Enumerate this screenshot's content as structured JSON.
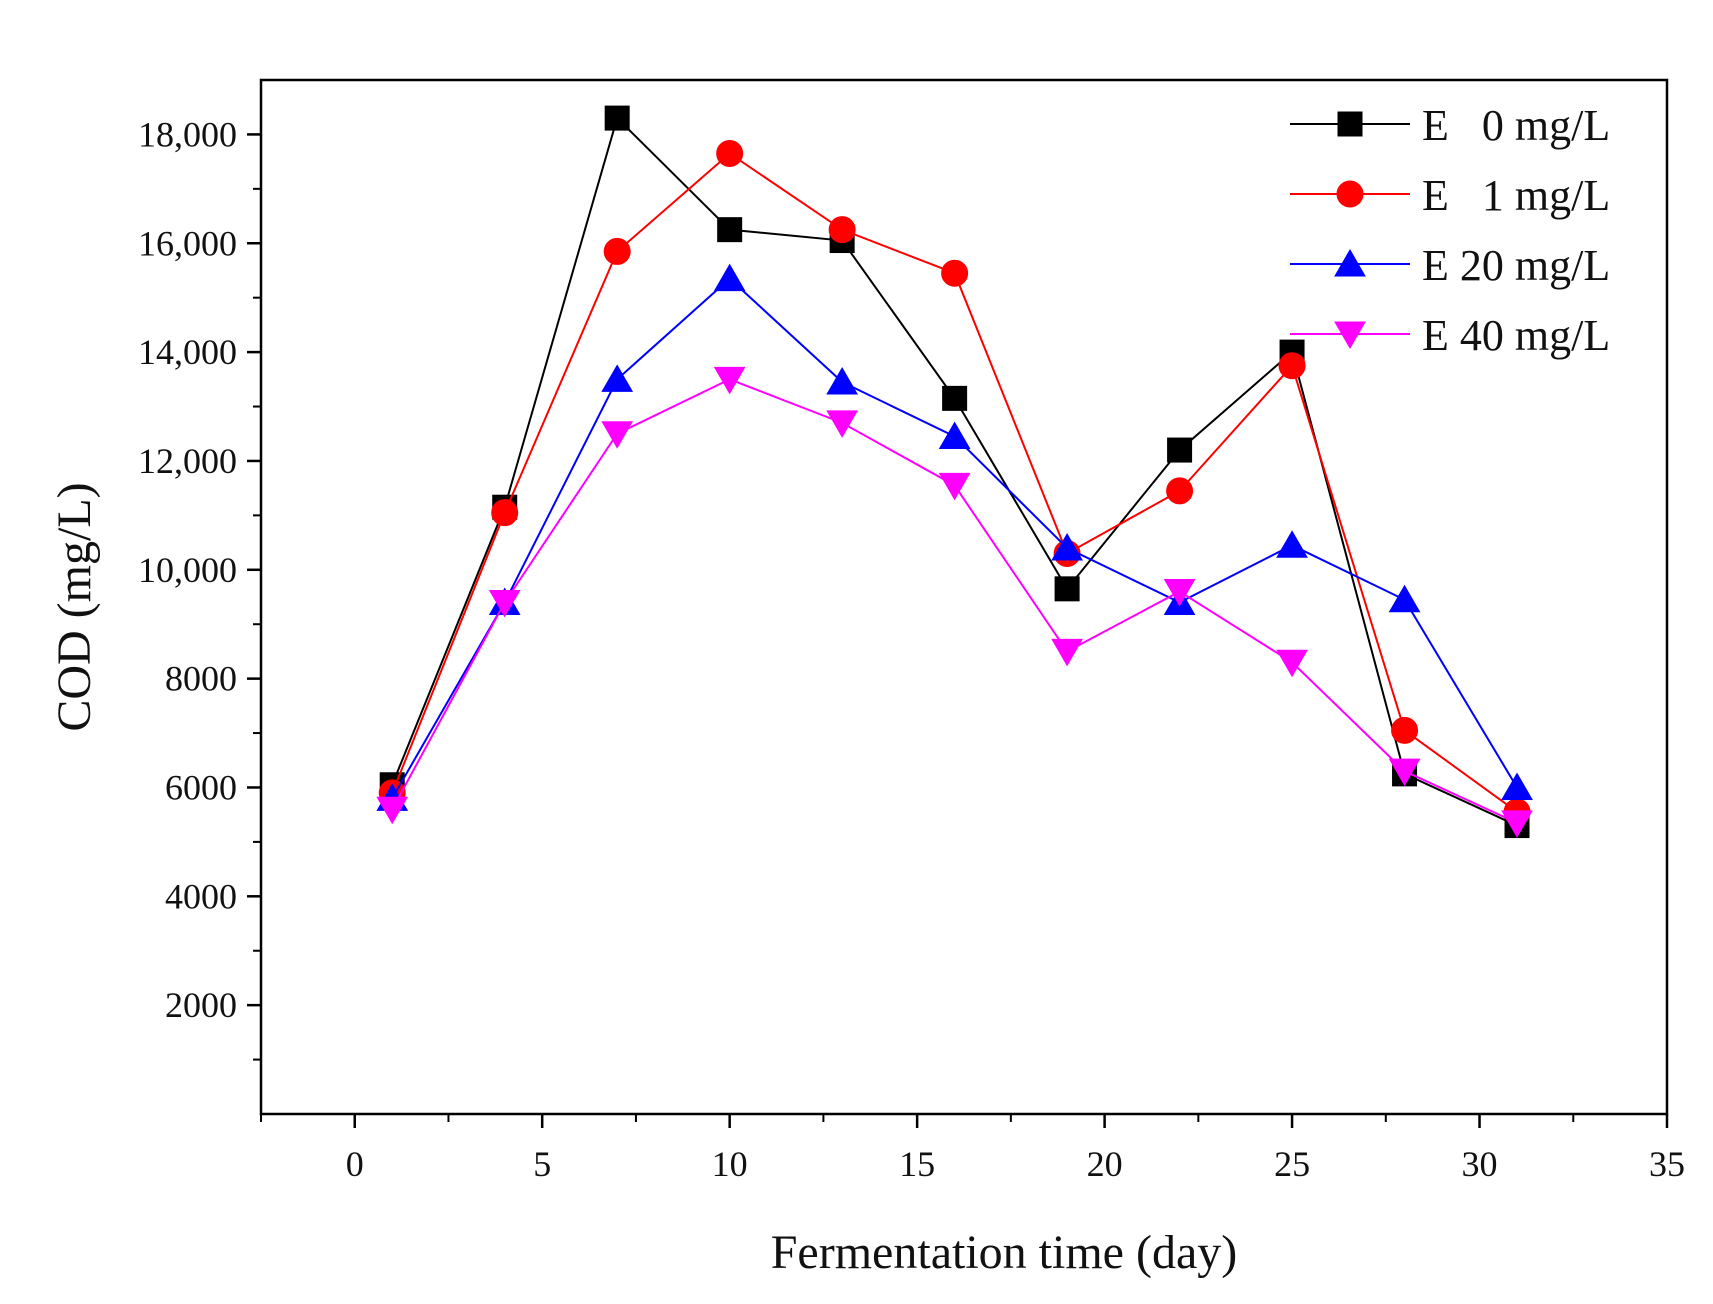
{
  "chart_data": {
    "type": "line",
    "title": "",
    "xlabel": "Fermentation time (day)",
    "ylabel": "COD (mg/L)",
    "xlim": [
      -2.5,
      35
    ],
    "ylim": [
      0,
      19000
    ],
    "x_ticks": [
      0,
      5,
      10,
      15,
      20,
      25,
      30,
      35
    ],
    "x_tick_labels": [
      "0",
      "5",
      "10",
      "15",
      "20",
      "25",
      "30",
      "35"
    ],
    "y_ticks": [
      2000,
      4000,
      6000,
      8000,
      10000,
      12000,
      14000,
      16000,
      18000
    ],
    "y_tick_labels": [
      "2000",
      "4000",
      "6000",
      "8000",
      "10,000",
      "12,000",
      "14,000",
      "16,000",
      "18,000"
    ],
    "grid": false,
    "legend_position": "top-right",
    "x": [
      1,
      4,
      7,
      10,
      13,
      16,
      19,
      22,
      25,
      28,
      31
    ],
    "series": [
      {
        "name": "E   0 mg/L",
        "color": "#000000",
        "marker": "square",
        "values": [
          6050,
          11150,
          18300,
          16250,
          16050,
          13150,
          9650,
          12200,
          14000,
          6250,
          5300
        ]
      },
      {
        "name": "E   1 mg/L",
        "color": "#ff0000",
        "marker": "circle",
        "values": [
          5900,
          11050,
          15850,
          17650,
          16250,
          15450,
          10300,
          11450,
          13750,
          7050,
          5550
        ]
      },
      {
        "name": "E 20 mg/L",
        "color": "#0000ff",
        "marker": "triangle-up",
        "values": [
          5800,
          9400,
          13500,
          15350,
          13450,
          12450,
          10400,
          9400,
          10450,
          9450,
          6000
        ]
      },
      {
        "name": "E 40 mg/L",
        "color": "#ff00ff",
        "marker": "triangle-down",
        "values": [
          5600,
          9400,
          12500,
          13500,
          12700,
          11550,
          8500,
          9600,
          8300,
          6300,
          5350
        ]
      }
    ]
  }
}
